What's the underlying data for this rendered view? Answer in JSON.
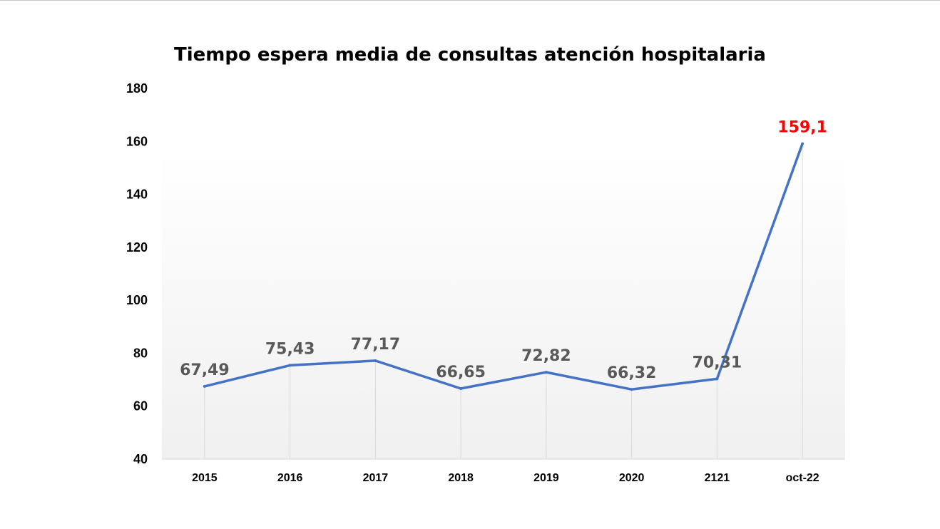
{
  "chart_data": {
    "type": "line",
    "title": "Tiempo espera media de consultas atención hospitalaria",
    "xlabel": "",
    "ylabel": "",
    "categories": [
      "2015",
      "2016",
      "2017",
      "2018",
      "2019",
      "2020",
      "2121",
      "oct-22"
    ],
    "series": [
      {
        "values": [
          67.49,
          75.43,
          77.17,
          66.65,
          72.82,
          66.32,
          70.31,
          159.1
        ],
        "labels": [
          "67,49",
          "75,43",
          "77,17",
          "66,65",
          "72,82",
          "66,32",
          "70,31",
          "159,1"
        ],
        "color": "#4472c4",
        "highlight_color": "#ff0000",
        "highlight_index": 7
      }
    ],
    "ylim": [
      40,
      180
    ],
    "yticks": [
      40,
      60,
      80,
      100,
      120,
      140,
      160,
      180
    ],
    "grid": "vertical",
    "legend": "none"
  }
}
